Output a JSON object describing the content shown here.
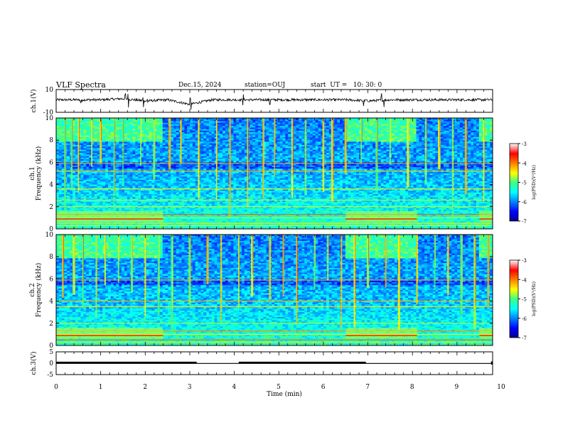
{
  "header": {
    "title": "VLF Spectra",
    "date": "Dec.15, 2024",
    "station": "station=OUJ",
    "start": "start  UT =   10: 30: 0"
  },
  "colorbar_label": "log(PSD)(V²/Hz)",
  "chart_data": [
    {
      "type": "line",
      "name": "ch1-waveform",
      "ylabel": "ch.1(V)",
      "ylim": [
        -10,
        10
      ],
      "yticks": [
        10,
        -10
      ],
      "xlim": [
        0,
        10
      ],
      "baseline_value": 1,
      "spikes_min": [
        0.55,
        0.58,
        1.55,
        1.62,
        1.95,
        2.05,
        3.0,
        3.02,
        4.2,
        4.8,
        6.9,
        6.95,
        7.3,
        7.35
      ],
      "x": [
        0,
        0.5,
        1,
        1.5,
        2,
        2.5,
        3,
        3.5,
        4,
        4.5,
        5,
        5.5,
        6,
        6.5,
        7,
        7.5,
        8,
        8.5,
        9,
        9.5,
        9.8
      ],
      "y": [
        1,
        1,
        1,
        2,
        0,
        1,
        -3,
        1,
        1,
        1,
        1,
        1,
        1,
        1,
        0,
        1,
        1,
        1,
        1,
        1,
        1
      ]
    },
    {
      "type": "heatmap",
      "name": "ch1-spectrogram",
      "ylabel": "ch.1\nFrequency (kHz)",
      "ylim": [
        0,
        10
      ],
      "yticks": [
        0,
        2,
        4,
        6,
        8,
        10
      ],
      "xlim": [
        0,
        9.8
      ],
      "colorbar": {
        "min": -7,
        "max": -3,
        "ticks": [
          -3,
          -4,
          -5,
          -6,
          -7
        ],
        "label": "log(PSD)(V²/Hz)"
      },
      "strong_bands_khz": [
        0.3,
        0.5,
        1.0,
        1.3,
        2.0,
        2.6,
        3.6,
        5.2,
        5.9
      ],
      "enhanced_intervals_min": [
        [
          0,
          2.4
        ],
        [
          6.5,
          8.1
        ],
        [
          9.5,
          9.8
        ]
      ],
      "sferic_times_min": [
        0.2,
        0.35,
        0.5,
        0.8,
        1.0,
        1.3,
        1.5,
        1.9,
        2.2,
        2.55,
        2.8,
        3.2,
        3.6,
        3.9,
        4.3,
        4.65,
        4.9,
        5.3,
        5.6,
        6.0,
        6.2,
        6.5,
        6.85,
        7.2,
        7.5,
        7.9,
        8.3,
        8.6,
        8.9,
        9.2,
        9.6
      ]
    },
    {
      "type": "heatmap",
      "name": "ch2-spectrogram",
      "ylabel": "ch.2\nFrequency (kHz)",
      "ylim": [
        0,
        10
      ],
      "yticks": [
        0,
        2,
        4,
        6,
        8,
        10
      ],
      "xlim": [
        0,
        9.8
      ],
      "colorbar": {
        "min": -7,
        "max": -3,
        "ticks": [
          -3,
          -4,
          -5,
          -6,
          -7
        ],
        "label": "log(PSD)(V²/Hz)"
      },
      "strong_bands_khz": [
        0.3,
        0.5,
        1.0,
        1.3,
        2.0,
        3.5,
        4.0,
        5.9
      ],
      "enhanced_intervals_min": [
        [
          0,
          2.4
        ],
        [
          6.5,
          8.1
        ],
        [
          9.5,
          9.8
        ]
      ],
      "sferic_times_min": [
        0.15,
        0.4,
        0.6,
        0.9,
        1.1,
        1.4,
        1.7,
        2.0,
        2.3,
        2.6,
        3.0,
        3.4,
        3.7,
        4.1,
        4.4,
        4.8,
        5.1,
        5.4,
        5.8,
        6.1,
        6.4,
        6.7,
        7.0,
        7.4,
        7.7,
        8.1,
        8.5,
        8.8,
        9.1,
        9.4,
        9.7
      ]
    },
    {
      "type": "line",
      "name": "ch3-trigger",
      "ylabel": "ch.3(V)",
      "ylim": [
        -5,
        5
      ],
      "yticks": [
        5,
        0,
        -5
      ],
      "xlim": [
        0,
        10
      ],
      "xlabel": "Time (min)",
      "xticks": [
        0,
        1,
        2,
        3,
        4,
        5,
        6,
        7,
        8,
        9,
        10
      ],
      "x": [
        0,
        3.15,
        3.16,
        4.1,
        4.11,
        6.95,
        6.96,
        9.8
      ],
      "y": [
        0.2,
        0.2,
        -0.1,
        -0.1,
        0.2,
        0.2,
        -0.1,
        -0.1
      ]
    }
  ]
}
